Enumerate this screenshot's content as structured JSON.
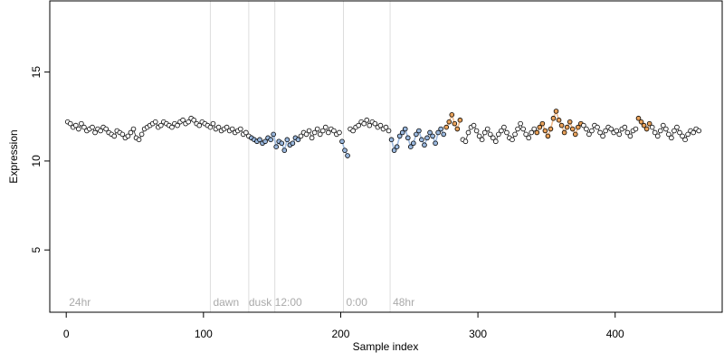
{
  "chart_data": {
    "type": "scatter",
    "title": "",
    "xlabel": "Sample index",
    "ylabel": "Expression",
    "xlim": [
      -12,
      478
    ],
    "ylim": [
      1.5,
      19
    ],
    "xticks": [
      0,
      100,
      200,
      300,
      400
    ],
    "yticks": [
      5,
      10,
      15
    ],
    "grid": false,
    "legend": "none",
    "colors": {
      "frame": "#000000",
      "divider": "#dddddd",
      "region_label": "#aaaaaa",
      "point_outline": "#000000",
      "point_black": "#ffffff",
      "point_orange": "#e8a15a",
      "point_blue": "#9ab8de",
      "trend_black": "#000000",
      "trend_orange": "#f0b27a",
      "trend_blue": "#8fb0dc"
    },
    "dividers": [
      105,
      133,
      152,
      202,
      236
    ],
    "regions": [
      {
        "label": "24hr",
        "x": 2
      },
      {
        "label": "dawn",
        "x": 107
      },
      {
        "label": "dusk",
        "x": 133
      },
      {
        "label": "12:00",
        "x": 152
      },
      {
        "label": "0:00",
        "x": 204
      },
      {
        "label": "48hr",
        "x": 238
      }
    ],
    "series": [
      {
        "group": "black",
        "x": [
          1,
          3,
          5,
          7,
          9,
          11,
          13,
          15,
          17,
          19,
          21,
          23,
          25,
          27,
          29,
          31,
          33,
          35,
          37,
          39,
          41,
          43,
          45,
          47,
          49,
          51,
          53,
          55,
          57,
          59,
          61,
          63,
          65,
          67,
          69,
          71,
          73,
          75,
          77,
          79,
          81,
          83,
          85,
          87,
          89,
          91,
          93,
          95,
          97,
          99,
          101,
          103,
          105,
          107,
          109,
          111,
          113,
          115,
          117,
          119,
          121,
          123,
          125,
          127,
          129,
          131,
          133
        ],
        "y": [
          12.2,
          12.1,
          11.9,
          12.0,
          11.8,
          12.1,
          11.9,
          11.7,
          11.8,
          11.9,
          11.6,
          11.8,
          11.7,
          11.9,
          11.8,
          11.6,
          11.5,
          11.4,
          11.7,
          11.6,
          11.5,
          11.3,
          11.4,
          11.6,
          11.8,
          11.3,
          11.2,
          11.5,
          11.8,
          11.9,
          12.0,
          12.1,
          12.2,
          11.9,
          12.0,
          12.2,
          12.1,
          12.0,
          11.9,
          12.1,
          12.0,
          12.2,
          12.3,
          12.1,
          12.2,
          12.4,
          12.3,
          12.1,
          12.0,
          12.2,
          12.1,
          12.0,
          11.9,
          12.1,
          11.8,
          11.9,
          11.7,
          11.8,
          11.9,
          11.7,
          11.8,
          11.6,
          11.7,
          11.8,
          11.5,
          11.6,
          11.4
        ]
      },
      {
        "group": "blue",
        "x": [
          135,
          137,
          139,
          141,
          143,
          145,
          147,
          149,
          151,
          153,
          155,
          157,
          159,
          161,
          163,
          165,
          167,
          169
        ],
        "y": [
          11.3,
          11.2,
          11.1,
          11.2,
          11.0,
          11.1,
          11.3,
          11.2,
          11.5,
          10.8,
          11.1,
          11.0,
          10.6,
          11.2,
          10.9,
          11.0,
          11.3,
          11.2
        ]
      },
      {
        "group": "black",
        "x": [
          171,
          173,
          175,
          177,
          179,
          181,
          183,
          185,
          187,
          189,
          191,
          193,
          195,
          197,
          199
        ],
        "y": [
          11.4,
          11.6,
          11.5,
          11.7,
          11.3,
          11.6,
          11.8,
          11.5,
          11.7,
          11.9,
          11.6,
          11.8,
          11.7,
          11.5,
          11.6
        ]
      },
      {
        "group": "blue",
        "x": [
          201,
          203,
          205
        ],
        "y": [
          11.1,
          10.6,
          10.3
        ]
      },
      {
        "group": "black",
        "x": [
          207,
          209,
          211,
          213,
          215,
          217,
          219,
          221,
          223,
          225,
          227,
          229,
          231,
          233,
          235
        ],
        "y": [
          11.8,
          11.7,
          11.9,
          12.0,
          12.2,
          12.1,
          12.3,
          12.0,
          12.2,
          12.1,
          11.9,
          12.0,
          11.8,
          11.9,
          11.7
        ]
      },
      {
        "group": "blue",
        "x": [
          237,
          239,
          241,
          243,
          245,
          247,
          249,
          251,
          253,
          255,
          257,
          259,
          261,
          263,
          265,
          267,
          269,
          271,
          273,
          275
        ],
        "y": [
          11.2,
          10.6,
          10.8,
          11.4,
          11.6,
          11.8,
          11.3,
          10.8,
          11.0,
          11.5,
          11.7,
          11.2,
          10.9,
          11.3,
          11.6,
          11.4,
          11.0,
          11.6,
          11.8,
          11.5
        ]
      },
      {
        "group": "orange",
        "x": [
          277,
          279,
          281,
          283,
          285,
          287
        ],
        "y": [
          11.9,
          12.2,
          12.6,
          12.1,
          11.8,
          12.3
        ]
      },
      {
        "group": "black",
        "x": [
          289,
          291,
          293,
          295,
          297,
          299,
          301,
          303,
          305,
          307,
          309,
          311,
          313,
          315,
          317,
          319,
          321,
          323,
          325,
          327,
          329,
          331,
          333,
          335,
          337,
          339,
          341
        ],
        "y": [
          11.2,
          11.1,
          11.6,
          11.9,
          12.0,
          11.7,
          11.4,
          11.2,
          11.6,
          11.8,
          11.5,
          11.3,
          11.1,
          11.5,
          11.7,
          11.9,
          11.6,
          11.3,
          11.2,
          11.5,
          11.8,
          12.1,
          11.8,
          11.5,
          11.3,
          11.6,
          11.8
        ]
      },
      {
        "group": "orange",
        "x": [
          343,
          345,
          347,
          349,
          351,
          353,
          355,
          357,
          359,
          361,
          363,
          365,
          367,
          369,
          371,
          373,
          375
        ],
        "y": [
          11.6,
          11.9,
          12.1,
          11.7,
          11.4,
          11.8,
          12.4,
          12.8,
          12.3,
          12.0,
          11.6,
          11.9,
          12.2,
          11.8,
          11.5,
          11.9,
          12.1
        ]
      },
      {
        "group": "black",
        "x": [
          377,
          379,
          381,
          383,
          385,
          387,
          389,
          391,
          393,
          395,
          397,
          399,
          401,
          403,
          405,
          407,
          409,
          411,
          413,
          415
        ],
        "y": [
          12.0,
          11.8,
          11.5,
          11.7,
          12.0,
          11.9,
          11.6,
          11.4,
          11.7,
          11.9,
          11.8,
          11.6,
          11.7,
          11.5,
          11.8,
          11.9,
          11.6,
          11.4,
          11.7,
          11.8
        ]
      },
      {
        "group": "orange",
        "x": [
          417,
          419,
          421,
          423,
          425
        ],
        "y": [
          12.4,
          12.2,
          12.0,
          11.8,
          12.1
        ]
      },
      {
        "group": "black",
        "x": [
          427,
          429,
          431,
          433,
          435,
          437,
          439,
          441,
          443,
          445,
          447,
          449,
          451,
          453,
          455,
          457,
          459,
          461
        ],
        "y": [
          11.9,
          11.6,
          11.4,
          11.7,
          12.0,
          11.8,
          11.5,
          11.3,
          11.7,
          11.9,
          11.6,
          11.4,
          11.2,
          11.5,
          11.7,
          11.6,
          11.8,
          11.7
        ]
      }
    ]
  }
}
